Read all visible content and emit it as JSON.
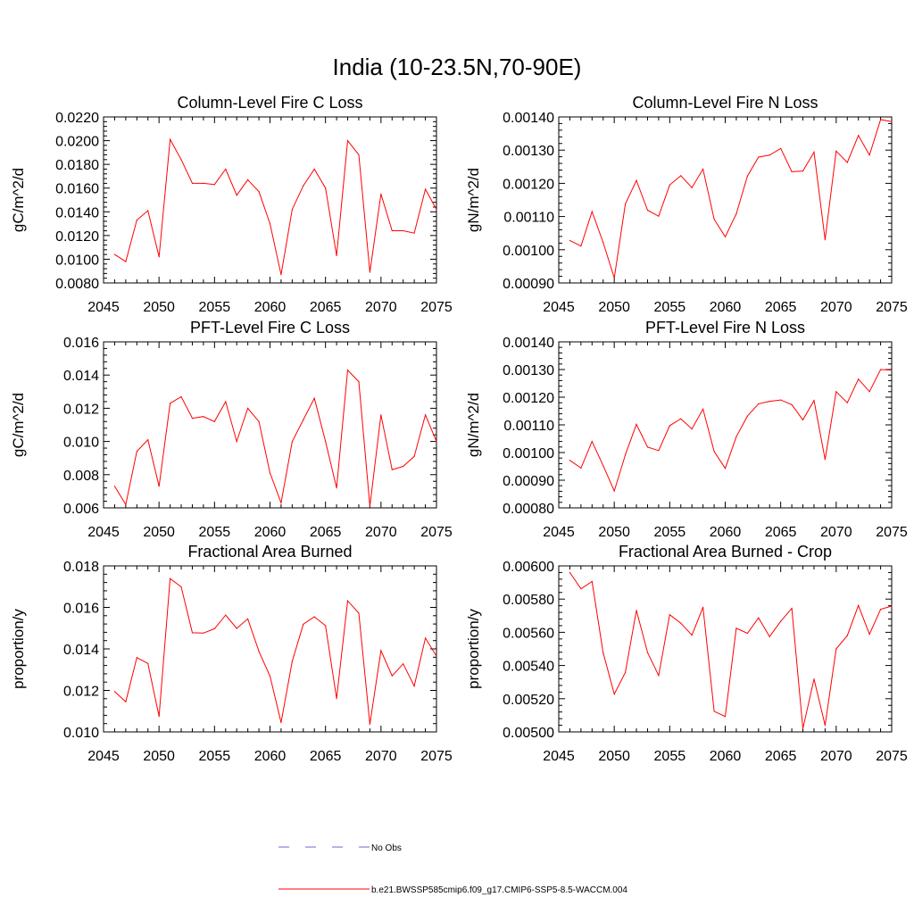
{
  "figure": {
    "title": "India (10-23.5N,70-90E)"
  },
  "legend": {
    "entries": [
      {
        "label": "No Obs",
        "color": "#6a6ad0",
        "dash": "dashed"
      },
      {
        "label": "b.e21.BWSSP585cmip6.f09_g17.CMIP6-SSP5-8.5-WACCM.004",
        "color": "#ff0000",
        "dash": "solid"
      }
    ]
  },
  "chart_data": [
    {
      "type": "line",
      "title": "Column-Level Fire C Loss",
      "ylabel": "gC/m^2/d",
      "xlim": [
        2045,
        2075
      ],
      "ylim": [
        0.008,
        0.022
      ],
      "xticks": [
        2045,
        2050,
        2055,
        2060,
        2065,
        2070,
        2075
      ],
      "xtick_labels": [
        "2045",
        "2050",
        "2055",
        "2060",
        "2065",
        "2070",
        "2075"
      ],
      "yticks": [
        0.008,
        0.01,
        0.012,
        0.014,
        0.016,
        0.018,
        0.02,
        0.022
      ],
      "ytick_labels": [
        "0.0080",
        "0.0100",
        "0.0120",
        "0.0140",
        "0.0160",
        "0.0180",
        "0.0200",
        "0.0220"
      ],
      "series": [
        {
          "color": "#ff0000",
          "x": [
            2046,
            2047,
            2048,
            2049,
            2050,
            2051,
            2052,
            2053,
            2054,
            2055,
            2056,
            2057,
            2058,
            2059,
            2060,
            2061,
            2062,
            2063,
            2064,
            2065,
            2066,
            2067,
            2068,
            2069,
            2070,
            2071,
            2072,
            2073,
            2074,
            2075
          ],
          "y": [
            0.0104,
            0.0098,
            0.0133,
            0.0141,
            0.0102,
            0.0201,
            0.0184,
            0.0164,
            0.0164,
            0.0163,
            0.0176,
            0.0154,
            0.0167,
            0.0157,
            0.013,
            0.0087,
            0.0142,
            0.0162,
            0.0176,
            0.016,
            0.0103,
            0.02,
            0.0188,
            0.0089,
            0.0155,
            0.0124,
            0.0124,
            0.0122,
            0.0159,
            0.0142
          ]
        }
      ]
    },
    {
      "type": "line",
      "title": "Column-Level Fire N Loss",
      "ylabel": "gN/m^2/d",
      "xlim": [
        2045,
        2075
      ],
      "ylim": [
        0.0009,
        0.0014
      ],
      "xticks": [
        2045,
        2050,
        2055,
        2060,
        2065,
        2070,
        2075
      ],
      "xtick_labels": [
        "2045",
        "2050",
        "2055",
        "2060",
        "2065",
        "2070",
        "2075"
      ],
      "yticks": [
        0.0009,
        0.001,
        0.0011,
        0.0012,
        0.0013,
        0.0014
      ],
      "ytick_labels": [
        "0.00090",
        "0.00100",
        "0.00110",
        "0.00120",
        "0.00130",
        "0.00140"
      ],
      "series": [
        {
          "color": "#ff0000",
          "x": [
            2046,
            2047,
            2048,
            2049,
            2050,
            2051,
            2052,
            2053,
            2054,
            2055,
            2056,
            2057,
            2058,
            2059,
            2060,
            2061,
            2062,
            2063,
            2064,
            2065,
            2066,
            2067,
            2068,
            2069,
            2070,
            2071,
            2072,
            2073,
            2074,
            2075
          ],
          "y": [
            0.001028,
            0.001011,
            0.001115,
            0.001022,
            0.000915,
            0.001138,
            0.001209,
            0.001119,
            0.001101,
            0.001195,
            0.001223,
            0.001187,
            0.001243,
            0.001092,
            0.001039,
            0.001108,
            0.001222,
            0.001279,
            0.001285,
            0.001305,
            0.001235,
            0.001237,
            0.001294,
            0.00103,
            0.001297,
            0.001263,
            0.001344,
            0.001285,
            0.001392,
            0.001386
          ]
        }
      ]
    },
    {
      "type": "line",
      "title": "PFT-Level Fire C Loss",
      "ylabel": "gC/m^2/d",
      "xlim": [
        2045,
        2075
      ],
      "ylim": [
        0.006,
        0.016
      ],
      "xticks": [
        2045,
        2050,
        2055,
        2060,
        2065,
        2070,
        2075
      ],
      "xtick_labels": [
        "2045",
        "2050",
        "2055",
        "2060",
        "2065",
        "2070",
        "2075"
      ],
      "yticks": [
        0.006,
        0.008,
        0.01,
        0.012,
        0.014,
        0.016
      ],
      "ytick_labels": [
        "0.006",
        "0.008",
        "0.010",
        "0.012",
        "0.014",
        "0.016"
      ],
      "series": [
        {
          "color": "#ff0000",
          "x": [
            2046,
            2047,
            2048,
            2049,
            2050,
            2051,
            2052,
            2053,
            2054,
            2055,
            2056,
            2057,
            2058,
            2059,
            2060,
            2061,
            2062,
            2063,
            2064,
            2065,
            2066,
            2067,
            2068,
            2069,
            2070,
            2071,
            2072,
            2073,
            2074,
            2075
          ],
          "y": [
            0.0073,
            0.0062,
            0.0094,
            0.0101,
            0.0073,
            0.0123,
            0.0127,
            0.0114,
            0.0115,
            0.0112,
            0.0124,
            0.01,
            0.012,
            0.0112,
            0.0081,
            0.0063,
            0.01,
            0.0113,
            0.0126,
            0.01,
            0.0072,
            0.0143,
            0.0136,
            0.0061,
            0.0116,
            0.0083,
            0.0085,
            0.0091,
            0.0116,
            0.01
          ]
        }
      ]
    },
    {
      "type": "line",
      "title": "PFT-Level Fire N Loss",
      "ylabel": "gN/m^2/d",
      "xlim": [
        2045,
        2075
      ],
      "ylim": [
        0.0008,
        0.0014
      ],
      "xticks": [
        2045,
        2050,
        2055,
        2060,
        2065,
        2070,
        2075
      ],
      "xtick_labels": [
        "2045",
        "2050",
        "2055",
        "2060",
        "2065",
        "2070",
        "2075"
      ],
      "yticks": [
        0.0008,
        0.0009,
        0.001,
        0.0011,
        0.0012,
        0.0013,
        0.0014
      ],
      "ytick_labels": [
        "0.00080",
        "0.00090",
        "0.00100",
        "0.00110",
        "0.00120",
        "0.00130",
        "0.00140"
      ],
      "series": [
        {
          "color": "#ff0000",
          "x": [
            2046,
            2047,
            2048,
            2049,
            2050,
            2051,
            2052,
            2053,
            2054,
            2055,
            2056,
            2057,
            2058,
            2059,
            2060,
            2061,
            2062,
            2063,
            2064,
            2065,
            2066,
            2067,
            2068,
            2069,
            2070,
            2071,
            2072,
            2073,
            2074,
            2075
          ],
          "y": [
            0.000972,
            0.000944,
            0.00104,
            0.000953,
            0.000861,
            0.000992,
            0.001102,
            0.00102,
            0.001007,
            0.001097,
            0.001122,
            0.001085,
            0.001157,
            0.001004,
            0.000943,
            0.001057,
            0.001132,
            0.001176,
            0.001185,
            0.00119,
            0.001173,
            0.001118,
            0.001188,
            0.000975,
            0.00122,
            0.00118,
            0.001265,
            0.00122,
            0.0013,
            0.001298
          ]
        }
      ]
    },
    {
      "type": "line",
      "title": "Fractional Area Burned",
      "ylabel": "proportion/y",
      "xlim": [
        2045,
        2075
      ],
      "ylim": [
        0.01,
        0.018
      ],
      "xticks": [
        2045,
        2050,
        2055,
        2060,
        2065,
        2070,
        2075
      ],
      "xtick_labels": [
        "2045",
        "2050",
        "2055",
        "2060",
        "2065",
        "2070",
        "2075"
      ],
      "yticks": [
        0.01,
        0.012,
        0.014,
        0.016,
        0.018
      ],
      "ytick_labels": [
        "0.010",
        "0.012",
        "0.014",
        "0.016",
        "0.018"
      ],
      "series": [
        {
          "color": "#ff0000",
          "x": [
            2046,
            2047,
            2048,
            2049,
            2050,
            2051,
            2052,
            2053,
            2054,
            2055,
            2056,
            2057,
            2058,
            2059,
            2060,
            2061,
            2062,
            2063,
            2064,
            2065,
            2066,
            2067,
            2068,
            2069,
            2070,
            2071,
            2072,
            2073,
            2074,
            2075
          ],
          "y": [
            0.01195,
            0.01145,
            0.01358,
            0.0133,
            0.01075,
            0.01739,
            0.01699,
            0.01478,
            0.01476,
            0.01497,
            0.01563,
            0.01499,
            0.01545,
            0.01388,
            0.01269,
            0.01045,
            0.0134,
            0.01519,
            0.01555,
            0.01512,
            0.01161,
            0.01632,
            0.01572,
            0.01037,
            0.01392,
            0.0127,
            0.01328,
            0.01221,
            0.01452,
            0.01365
          ]
        }
      ]
    },
    {
      "type": "line",
      "title": "Fractional Area Burned - Crop",
      "ylabel": "proportion/y",
      "xlim": [
        2045,
        2075
      ],
      "ylim": [
        0.005,
        0.006
      ],
      "xticks": [
        2045,
        2050,
        2055,
        2060,
        2065,
        2070,
        2075
      ],
      "xtick_labels": [
        "2045",
        "2050",
        "2055",
        "2060",
        "2065",
        "2070",
        "2075"
      ],
      "yticks": [
        0.005,
        0.0052,
        0.0054,
        0.0056,
        0.0058,
        0.006
      ],
      "ytick_labels": [
        "0.00500",
        "0.00520",
        "0.00540",
        "0.00560",
        "0.00580",
        "0.00600"
      ],
      "series": [
        {
          "color": "#ff0000",
          "x": [
            2046,
            2047,
            2048,
            2049,
            2050,
            2051,
            2052,
            2053,
            2054,
            2055,
            2056,
            2057,
            2058,
            2059,
            2060,
            2061,
            2062,
            2063,
            2064,
            2065,
            2066,
            2067,
            2068,
            2069,
            2070,
            2071,
            2072,
            2073,
            2074,
            2075
          ],
          "y": [
            0.00596,
            0.005862,
            0.005906,
            0.005478,
            0.005228,
            0.005358,
            0.005732,
            0.005478,
            0.00534,
            0.005706,
            0.005655,
            0.005583,
            0.005751,
            0.005124,
            0.005093,
            0.005624,
            0.005594,
            0.005687,
            0.005574,
            0.005666,
            0.005744,
            0.00502,
            0.005319,
            0.00504,
            0.0055,
            0.00558,
            0.005762,
            0.005588,
            0.005738,
            0.005758
          ]
        }
      ]
    }
  ]
}
